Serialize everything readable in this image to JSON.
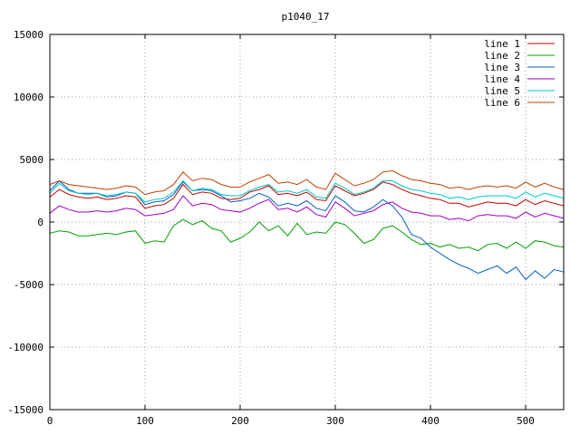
{
  "chart_data": {
    "type": "line",
    "title": "p1040_17",
    "xlabel": "",
    "ylabel": "",
    "xlim": [
      0,
      540
    ],
    "ylim": [
      -15000,
      15000
    ],
    "x_ticks": [
      0,
      100,
      200,
      300,
      400,
      500
    ],
    "y_ticks": [
      -15000,
      -10000,
      -5000,
      0,
      5000,
      10000,
      15000
    ],
    "grid": true,
    "legend_position": "top-right",
    "x": [
      0,
      10,
      20,
      30,
      40,
      50,
      60,
      70,
      80,
      90,
      100,
      110,
      120,
      130,
      140,
      150,
      160,
      170,
      180,
      190,
      200,
      210,
      220,
      230,
      240,
      250,
      260,
      270,
      280,
      290,
      300,
      310,
      320,
      330,
      340,
      350,
      360,
      370,
      380,
      390,
      400,
      410,
      420,
      430,
      440,
      450,
      460,
      470,
      480,
      490,
      500,
      510,
      520,
      530,
      540
    ],
    "series": [
      {
        "name": "line 1",
        "color": "#c00000",
        "values": [
          2000,
          2600,
          2200,
          2000,
          1900,
          2000,
          1800,
          1900,
          2100,
          2000,
          1100,
          1300,
          1400,
          1900,
          3000,
          2200,
          2400,
          2300,
          1900,
          1800,
          1900,
          2400,
          2600,
          2900,
          2200,
          2300,
          2100,
          2400,
          1800,
          1700,
          2900,
          2500,
          2100,
          2300,
          2600,
          3200,
          3000,
          2600,
          2300,
          2100,
          1900,
          1800,
          1500,
          1500,
          1200,
          1400,
          1600,
          1500,
          1500,
          1300,
          1800,
          1400,
          1700,
          1500,
          1300
        ]
      },
      {
        "name": "line 2",
        "color": "#00a000",
        "values": [
          -900,
          -700,
          -800,
          -1100,
          -1100,
          -1000,
          -900,
          -1000,
          -800,
          -700,
          -1700,
          -1500,
          -1600,
          -300,
          200,
          -200,
          100,
          -500,
          -700,
          -1600,
          -1300,
          -800,
          0,
          -700,
          -300,
          -1100,
          -100,
          -1000,
          -800,
          -900,
          0,
          -200,
          -900,
          -1700,
          -1400,
          -500,
          -300,
          -800,
          -1400,
          -1800,
          -1700,
          -2000,
          -1800,
          -2100,
          -2000,
          -2300,
          -1800,
          -1700,
          -2100,
          -1600,
          -2100,
          -1500,
          -1600,
          -1900,
          -2000
        ]
      },
      {
        "name": "line 3",
        "color": "#0060c0",
        "values": [
          2500,
          3300,
          2600,
          2300,
          2300,
          2300,
          2000,
          2100,
          2400,
          2300,
          1400,
          1600,
          1700,
          2200,
          3200,
          2500,
          2600,
          2500,
          2100,
          1600,
          1700,
          1900,
          2300,
          2000,
          1300,
          1500,
          1300,
          1700,
          1100,
          900,
          2100,
          1600,
          900,
          800,
          1200,
          1800,
          1300,
          400,
          -1000,
          -1300,
          -2000,
          -2500,
          -3000,
          -3400,
          -3700,
          -4100,
          -3800,
          -3500,
          -4100,
          -3600,
          -4600,
          -3900,
          -4500,
          -3800,
          -4000
        ]
      },
      {
        "name": "line 4",
        "color": "#a000c0",
        "values": [
          700,
          1300,
          1000,
          800,
          800,
          900,
          800,
          900,
          1100,
          1000,
          500,
          600,
          700,
          1000,
          2100,
          1300,
          1500,
          1400,
          1000,
          900,
          800,
          1100,
          1500,
          1800,
          1000,
          1100,
          800,
          1200,
          600,
          400,
          1600,
          1100,
          500,
          700,
          900,
          1400,
          1600,
          1100,
          800,
          700,
          500,
          500,
          200,
          300,
          100,
          500,
          600,
          500,
          500,
          300,
          800,
          400,
          700,
          500,
          300
        ]
      },
      {
        "name": "line 5",
        "color": "#00c8c8",
        "values": [
          2300,
          3100,
          2500,
          2300,
          2200,
          2300,
          2100,
          2200,
          2400,
          2300,
          1600,
          1800,
          1900,
          2400,
          3300,
          2500,
          2700,
          2600,
          2200,
          2100,
          2100,
          2500,
          2800,
          3000,
          2400,
          2500,
          2300,
          2600,
          2000,
          1900,
          3100,
          2700,
          2200,
          2400,
          2700,
          3300,
          3300,
          2900,
          2600,
          2500,
          2300,
          2200,
          1900,
          2000,
          1800,
          2000,
          2100,
          2100,
          2100,
          1900,
          2400,
          2000,
          2300,
          2100,
          1900
        ]
      },
      {
        "name": "line 6",
        "color": "#c04000",
        "values": [
          3000,
          3300,
          3000,
          2900,
          2800,
          2700,
          2600,
          2700,
          2900,
          2800,
          2200,
          2400,
          2500,
          3000,
          4000,
          3300,
          3500,
          3400,
          3000,
          2800,
          2800,
          3200,
          3500,
          3800,
          3100,
          3200,
          3000,
          3400,
          2800,
          2600,
          3900,
          3400,
          2900,
          3100,
          3400,
          4000,
          4100,
          3700,
          3400,
          3300,
          3100,
          3000,
          2700,
          2800,
          2600,
          2800,
          2900,
          2800,
          2900,
          2700,
          3200,
          2800,
          3100,
          2800,
          2600
        ]
      }
    ]
  }
}
